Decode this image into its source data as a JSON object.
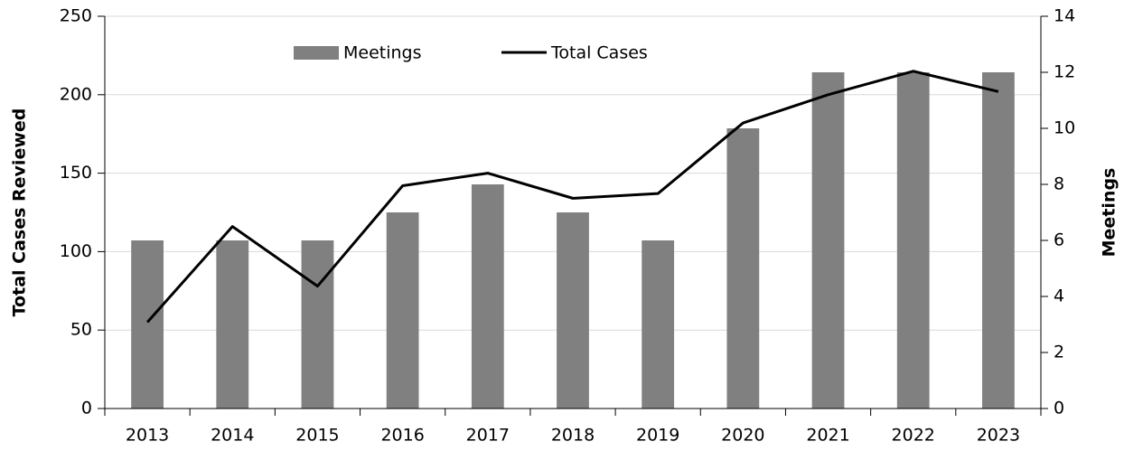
{
  "chart_data": {
    "type": "combo",
    "categories": [
      "2013",
      "2014",
      "2015",
      "2016",
      "2017",
      "2018",
      "2019",
      "2020",
      "2021",
      "2022",
      "2023"
    ],
    "series": [
      {
        "name": "Meetings",
        "type": "bar",
        "axis": "y2",
        "color": "#808080",
        "values": [
          6,
          6,
          6,
          7,
          8,
          7,
          6,
          10,
          12,
          12,
          12
        ]
      },
      {
        "name": "Total Cases",
        "type": "line",
        "axis": "y",
        "color": "#000000",
        "values": [
          55,
          116,
          78,
          142,
          150,
          134,
          137,
          182,
          200,
          215,
          202
        ]
      }
    ],
    "ylabel": "Total Cases Reviewed",
    "y2label": "Meetings",
    "ylim": [
      0,
      250
    ],
    "yticks": [
      0,
      50,
      100,
      150,
      200,
      250
    ],
    "y2lim": [
      0,
      14
    ],
    "y2ticks": [
      0,
      2,
      4,
      6,
      8,
      10,
      12,
      14
    ],
    "grid": true,
    "legend": "top"
  }
}
